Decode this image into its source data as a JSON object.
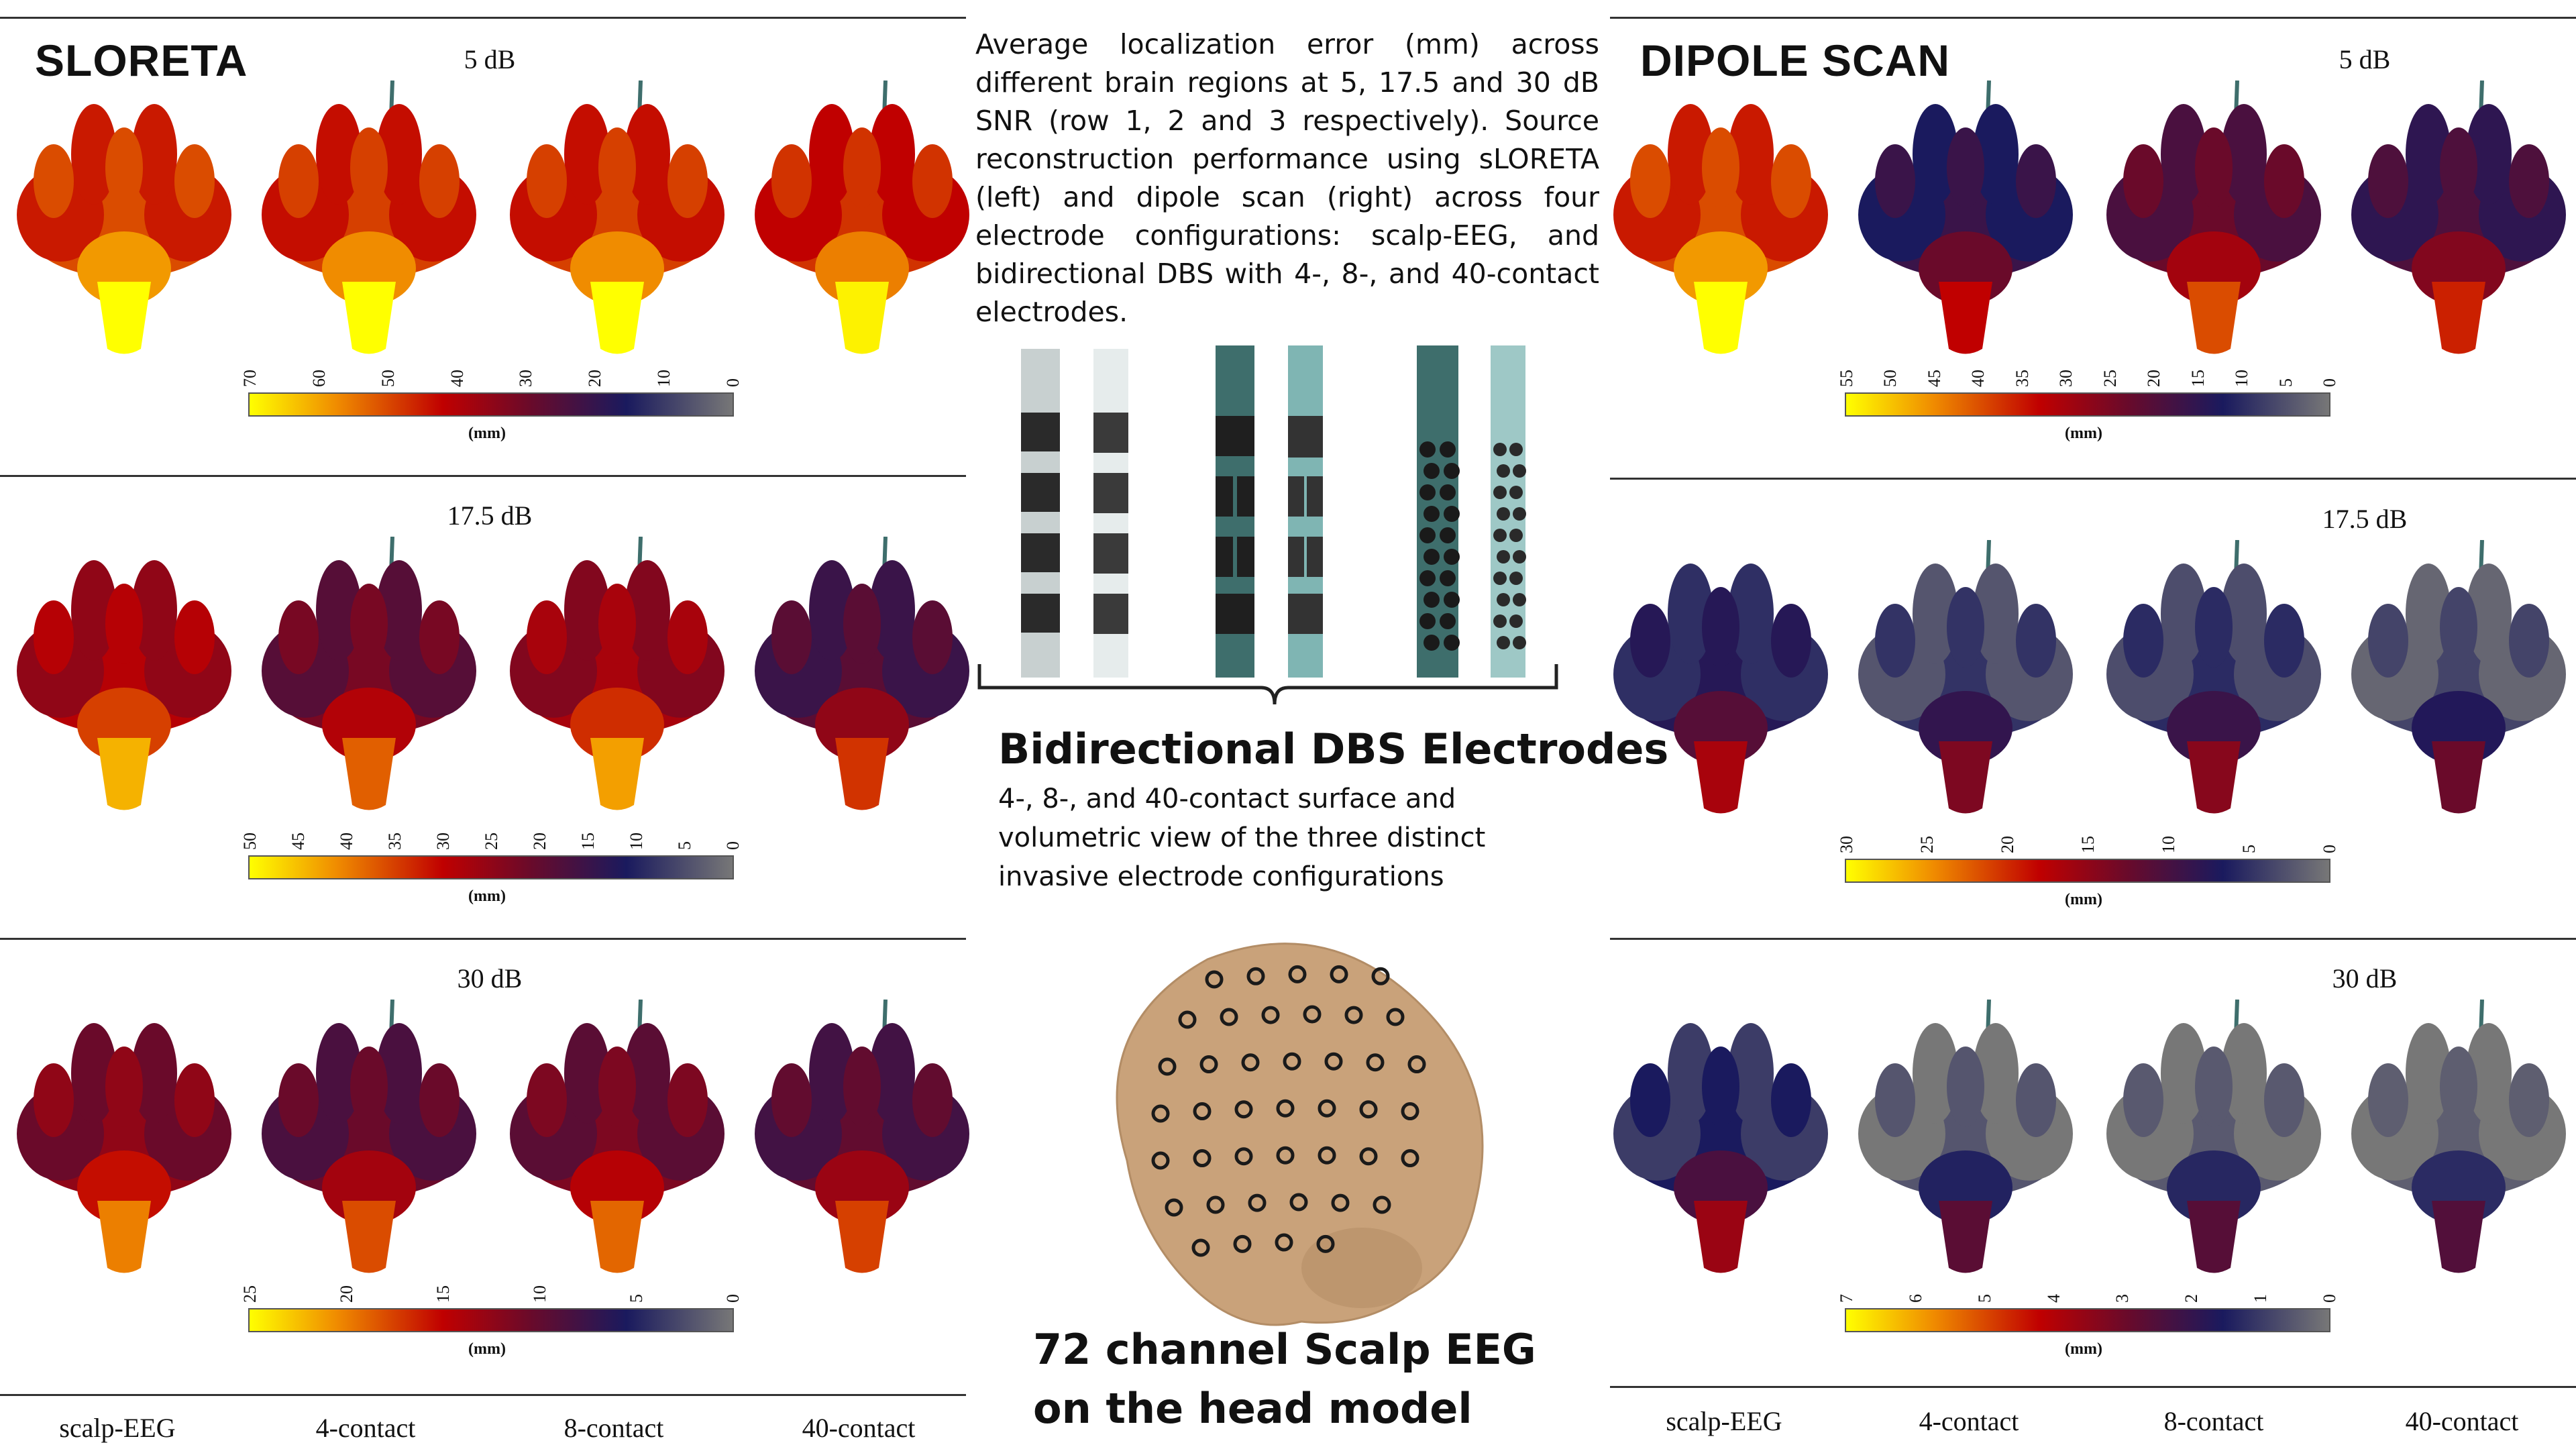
{
  "left_title": "SLORETA",
  "right_title": "DIPOLE SCAN",
  "caption_top": "Average localization error (mm) across different brain regions at 5, 17.5 and 30 dB SNR (row 1, 2 and 3 respectively). Source reconstruction performance using sLORETA (left) and dipole scan (right) across four electrode configurations: scalp-EEG, and bidirectional DBS with 4-, 8-, and 40-contact electrodes.",
  "dbs_title": "Bidirectional DBS Electrodes",
  "dbs_caption": "4-, 8-, and 40-contact surface and volumetric view of the three distinct invasive electrode configurations",
  "eeg_title": "72 channel Scalp EEG on the head model",
  "columns": [
    "scalp-EEG",
    "4-contact",
    "8-contact",
    "40-contact"
  ],
  "unit": "(mm)",
  "sloreta_rows": [
    {
      "snr": "5 dB",
      "ticks": [
        "70",
        "60",
        "50",
        "40",
        "30",
        "20",
        "10",
        "0"
      ],
      "levels": [
        0.72,
        0.7,
        0.7,
        0.68
      ]
    },
    {
      "snr": "17.5 dB",
      "ticks": [
        "50",
        "45",
        "40",
        "35",
        "30",
        "25",
        "20",
        "15",
        "10",
        "5",
        "0"
      ],
      "levels": [
        0.58,
        0.45,
        0.55,
        0.38
      ]
    },
    {
      "snr": "30 dB",
      "ticks": [
        "25",
        "20",
        "15",
        "10",
        "5",
        "0"
      ],
      "levels": [
        0.5,
        0.42,
        0.46,
        0.4
      ]
    }
  ],
  "dipole_rows": [
    {
      "snr": "5 dB",
      "ticks": [
        "55",
        "50",
        "45",
        "40",
        "35",
        "30",
        "25",
        "20",
        "15",
        "10",
        "5",
        "0"
      ],
      "levels": [
        0.72,
        0.3,
        0.42,
        0.35
      ]
    },
    {
      "snr": "17.5 dB",
      "ticks": [
        "30",
        "25",
        "20",
        "15",
        "10",
        "5",
        "0"
      ],
      "levels": [
        0.25,
        0.16,
        0.18,
        0.12
      ]
    },
    {
      "snr": "30 dB",
      "ticks": [
        "7",
        "6",
        "5",
        "4",
        "3",
        "2",
        "1",
        "0"
      ],
      "levels": [
        0.22,
        0.08,
        0.07,
        0.06
      ]
    }
  ],
  "colors": {
    "cmap_high": "#ffff00",
    "cmap_mid": "#c00000",
    "cmap_low": "#1a1a5e",
    "cmap_zero": "#777777",
    "head": "#c9a27a",
    "lead_light": "#c8d0d0",
    "lead_teal": "#3e6e6c"
  }
}
